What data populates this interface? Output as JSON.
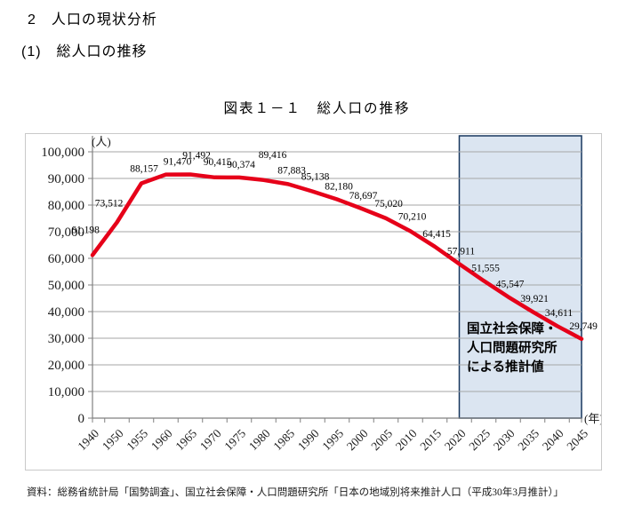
{
  "page": {
    "heading1": "2　人口の現状分析",
    "heading2": "(1)　総人口の推移",
    "source": "資料：総務省統計局「国勢調査」、国立社会保障・人口問題研究所「日本の地域別将来推計人口（平成30年3月推計）」"
  },
  "chart_data": {
    "type": "line",
    "title": "図表１－１　総人口の推移",
    "y_unit": "(人)",
    "x_unit": "(年)",
    "categories": [
      "1940",
      "1950",
      "1955",
      "1960",
      "1965",
      "1970",
      "1975",
      "1980",
      "1985",
      "1990",
      "1995",
      "2000",
      "2005",
      "2010",
      "2015",
      "2020",
      "2025",
      "2030",
      "2035",
      "2040",
      "2045"
    ],
    "values": [
      61198,
      73512,
      88157,
      91470,
      91492,
      90415,
      90374,
      89416,
      87883,
      85138,
      82180,
      78697,
      75020,
      70210,
      64415,
      57911,
      51555,
      45547,
      39921,
      34611,
      29749
    ],
    "ylim": [
      0,
      100000
    ],
    "ytick_step": 10000,
    "grid": true,
    "legend": "none",
    "line_color": "#e60019",
    "projection": {
      "start_category": "2020",
      "fill": "#dbe5f1",
      "border": "#17375e",
      "note_lines": [
        "国立社会保障・",
        "人口問題研究所",
        "による推計値"
      ]
    }
  }
}
